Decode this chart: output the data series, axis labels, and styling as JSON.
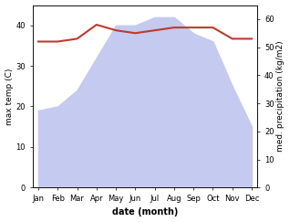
{
  "months": [
    "Jan",
    "Feb",
    "Mar",
    "Apr",
    "May",
    "Jun",
    "Jul",
    "Aug",
    "Sep",
    "Oct",
    "Nov",
    "Dec"
  ],
  "temperature": [
    19,
    20,
    24,
    32,
    40,
    40,
    42,
    42,
    38,
    36,
    25,
    15
  ],
  "precipitation": [
    52,
    52,
    53,
    58,
    56,
    55,
    56,
    57,
    57,
    57,
    53,
    53
  ],
  "temp_color": "#c0392b",
  "precip_fill_color": "#c5caf0",
  "precip_line_color": "#8890d0",
  "ylabel_left": "max temp (C)",
  "ylabel_right": "med. precipitation (kg/m2)",
  "xlabel": "date (month)",
  "ylim_left": [
    0,
    45
  ],
  "ylim_right": [
    0,
    65
  ],
  "yticks_left": [
    0,
    10,
    20,
    30,
    40
  ],
  "yticks_right": [
    0,
    10,
    20,
    30,
    40,
    50,
    60
  ],
  "bg_color": "#ffffff",
  "figsize": [
    3.18,
    2.43
  ],
  "dpi": 100
}
